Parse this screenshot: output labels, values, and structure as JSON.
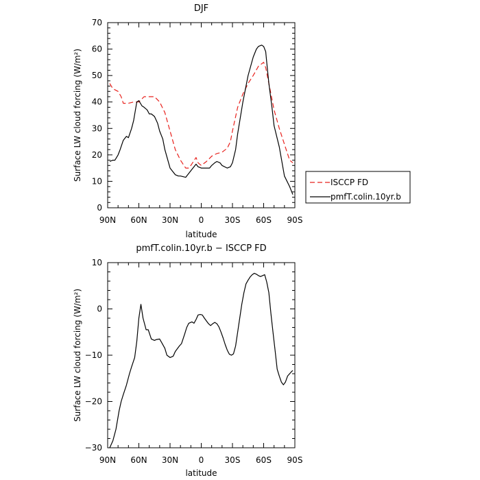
{
  "chart_data": [
    {
      "type": "line",
      "title": "DJF",
      "xlabel": "latitude",
      "ylabel": "Surface LW cloud forcing (W/m²)",
      "xlim": [
        -90,
        90
      ],
      "ylim": [
        0,
        70
      ],
      "xticks": [
        {
          "value": -90,
          "label": "90N"
        },
        {
          "value": -60,
          "label": "60N"
        },
        {
          "value": -30,
          "label": "30N"
        },
        {
          "value": 0,
          "label": "0"
        },
        {
          "value": 30,
          "label": "30S"
        },
        {
          "value": 60,
          "label": "60S"
        },
        {
          "value": 90,
          "label": "90S"
        }
      ],
      "yticks": [
        0,
        10,
        20,
        30,
        40,
        50,
        60,
        70
      ],
      "legend_position": "right",
      "series": [
        {
          "name": "ISCCP FD",
          "color": "#e8211c",
          "dash": "dashed",
          "x": [
            -88,
            -85,
            -80,
            -77,
            -75,
            -70,
            -65,
            -60,
            -55,
            -50,
            -45,
            -40,
            -35,
            -30,
            -25,
            -20,
            -15,
            -12,
            -10,
            -5,
            -3,
            0,
            5,
            10,
            15,
            20,
            25,
            28,
            30,
            35,
            40,
            45,
            50,
            55,
            60,
            62,
            65,
            70,
            75,
            80,
            85,
            88
          ],
          "y": [
            47,
            45,
            44,
            42,
            39.5,
            39.5,
            40,
            40,
            42,
            42,
            42,
            40,
            36,
            29,
            22,
            18,
            15,
            15,
            16,
            19,
            17,
            16,
            17.5,
            19.5,
            20.5,
            21,
            22.5,
            25,
            29,
            38,
            43,
            47,
            50,
            53.5,
            55,
            53,
            47,
            37,
            30,
            24,
            18,
            17
          ]
        },
        {
          "name": "pmfT.colin.10yr.b",
          "color": "#000000",
          "dash": "solid",
          "x": [
            -88,
            -85,
            -83,
            -80,
            -78,
            -75,
            -72,
            -70,
            -67,
            -65,
            -62,
            -60,
            -57,
            -55,
            -52,
            -50,
            -48,
            -45,
            -42,
            -40,
            -37,
            -35,
            -30,
            -25,
            -22,
            -20,
            -15,
            -10,
            -5,
            -3,
            0,
            5,
            8,
            10,
            13,
            15,
            18,
            20,
            25,
            28,
            30,
            33,
            35,
            40,
            45,
            50,
            53,
            55,
            58,
            60,
            62,
            63,
            65,
            68,
            70,
            75,
            80,
            85,
            88
          ],
          "y": [
            17.5,
            18,
            18,
            20,
            22,
            25.5,
            27,
            26.5,
            30,
            33,
            40,
            40.5,
            38.5,
            38,
            37,
            35.5,
            35.5,
            34.5,
            32,
            29,
            26,
            22,
            15,
            12.5,
            12,
            12,
            11.5,
            14,
            16.5,
            15.5,
            15,
            15,
            15,
            16,
            17,
            17.5,
            17,
            16,
            15,
            15.5,
            17,
            22,
            28,
            40,
            50,
            57,
            60,
            61,
            61.5,
            61,
            59,
            55,
            47,
            38,
            31,
            23,
            12,
            8,
            5
          ]
        }
      ]
    },
    {
      "type": "line",
      "title": "pmfT.colin.10yr.b − ISCCP FD",
      "xlabel": "latitude",
      "ylabel": "Surface LW cloud forcing (W/m²)",
      "xlim": [
        -90,
        90
      ],
      "ylim": [
        -30,
        10
      ],
      "xticks": [
        {
          "value": -90,
          "label": "90N"
        },
        {
          "value": -60,
          "label": "60N"
        },
        {
          "value": -30,
          "label": "30N"
        },
        {
          "value": 0,
          "label": "0"
        },
        {
          "value": 30,
          "label": "30S"
        },
        {
          "value": 60,
          "label": "60S"
        },
        {
          "value": 90,
          "label": "90S"
        }
      ],
      "yticks": [
        -30,
        -20,
        -10,
        0,
        10
      ],
      "series": [
        {
          "color": "#000000",
          "dash": "solid",
          "x": [
            -88,
            -85,
            -82,
            -79,
            -77,
            -75,
            -72,
            -69,
            -67,
            -64,
            -62,
            -60,
            -58,
            -56,
            -53,
            -51,
            -48,
            -45,
            -43,
            -40,
            -38,
            -35,
            -33,
            -30,
            -27,
            -25,
            -21,
            -19,
            -16,
            -14,
            -12,
            -9,
            -7,
            -5,
            -3,
            -1,
            1,
            3,
            5,
            7,
            9,
            11,
            13,
            15,
            17,
            19,
            21,
            23,
            25,
            27,
            29,
            31,
            33,
            35,
            37,
            39,
            41,
            43,
            45,
            47,
            49,
            51,
            53,
            55,
            57,
            59,
            61,
            63,
            65,
            67,
            69,
            71,
            73,
            75,
            77,
            79,
            81,
            83,
            85,
            87,
            88
          ],
          "y": [
            -30,
            -28.5,
            -26,
            -22,
            -20,
            -18.5,
            -16.5,
            -14,
            -12.5,
            -10.5,
            -7,
            -2,
            1,
            -2,
            -4.5,
            -4.5,
            -6.5,
            -6.8,
            -6.6,
            -6.5,
            -7.3,
            -8.5,
            -10,
            -10.5,
            -10.2,
            -9.2,
            -8,
            -7.5,
            -5.5,
            -4,
            -3.1,
            -2.8,
            -3.1,
            -2.3,
            -1.3,
            -1.2,
            -1.3,
            -2,
            -2.6,
            -3.2,
            -3.6,
            -3.2,
            -2.9,
            -3.2,
            -3.9,
            -5,
            -6.3,
            -7.7,
            -8.9,
            -9.8,
            -10,
            -9.7,
            -8,
            -5,
            -2,
            1,
            3.5,
            5.4,
            6.2,
            6.9,
            7.4,
            7.7,
            7.5,
            7.2,
            7,
            7.2,
            7.4,
            5.8,
            3.5,
            -1,
            -5,
            -9,
            -13,
            -14.5,
            -15.8,
            -16.4,
            -15.8,
            -14.5,
            -14,
            -13.5,
            -13.3
          ]
        }
      ]
    }
  ]
}
